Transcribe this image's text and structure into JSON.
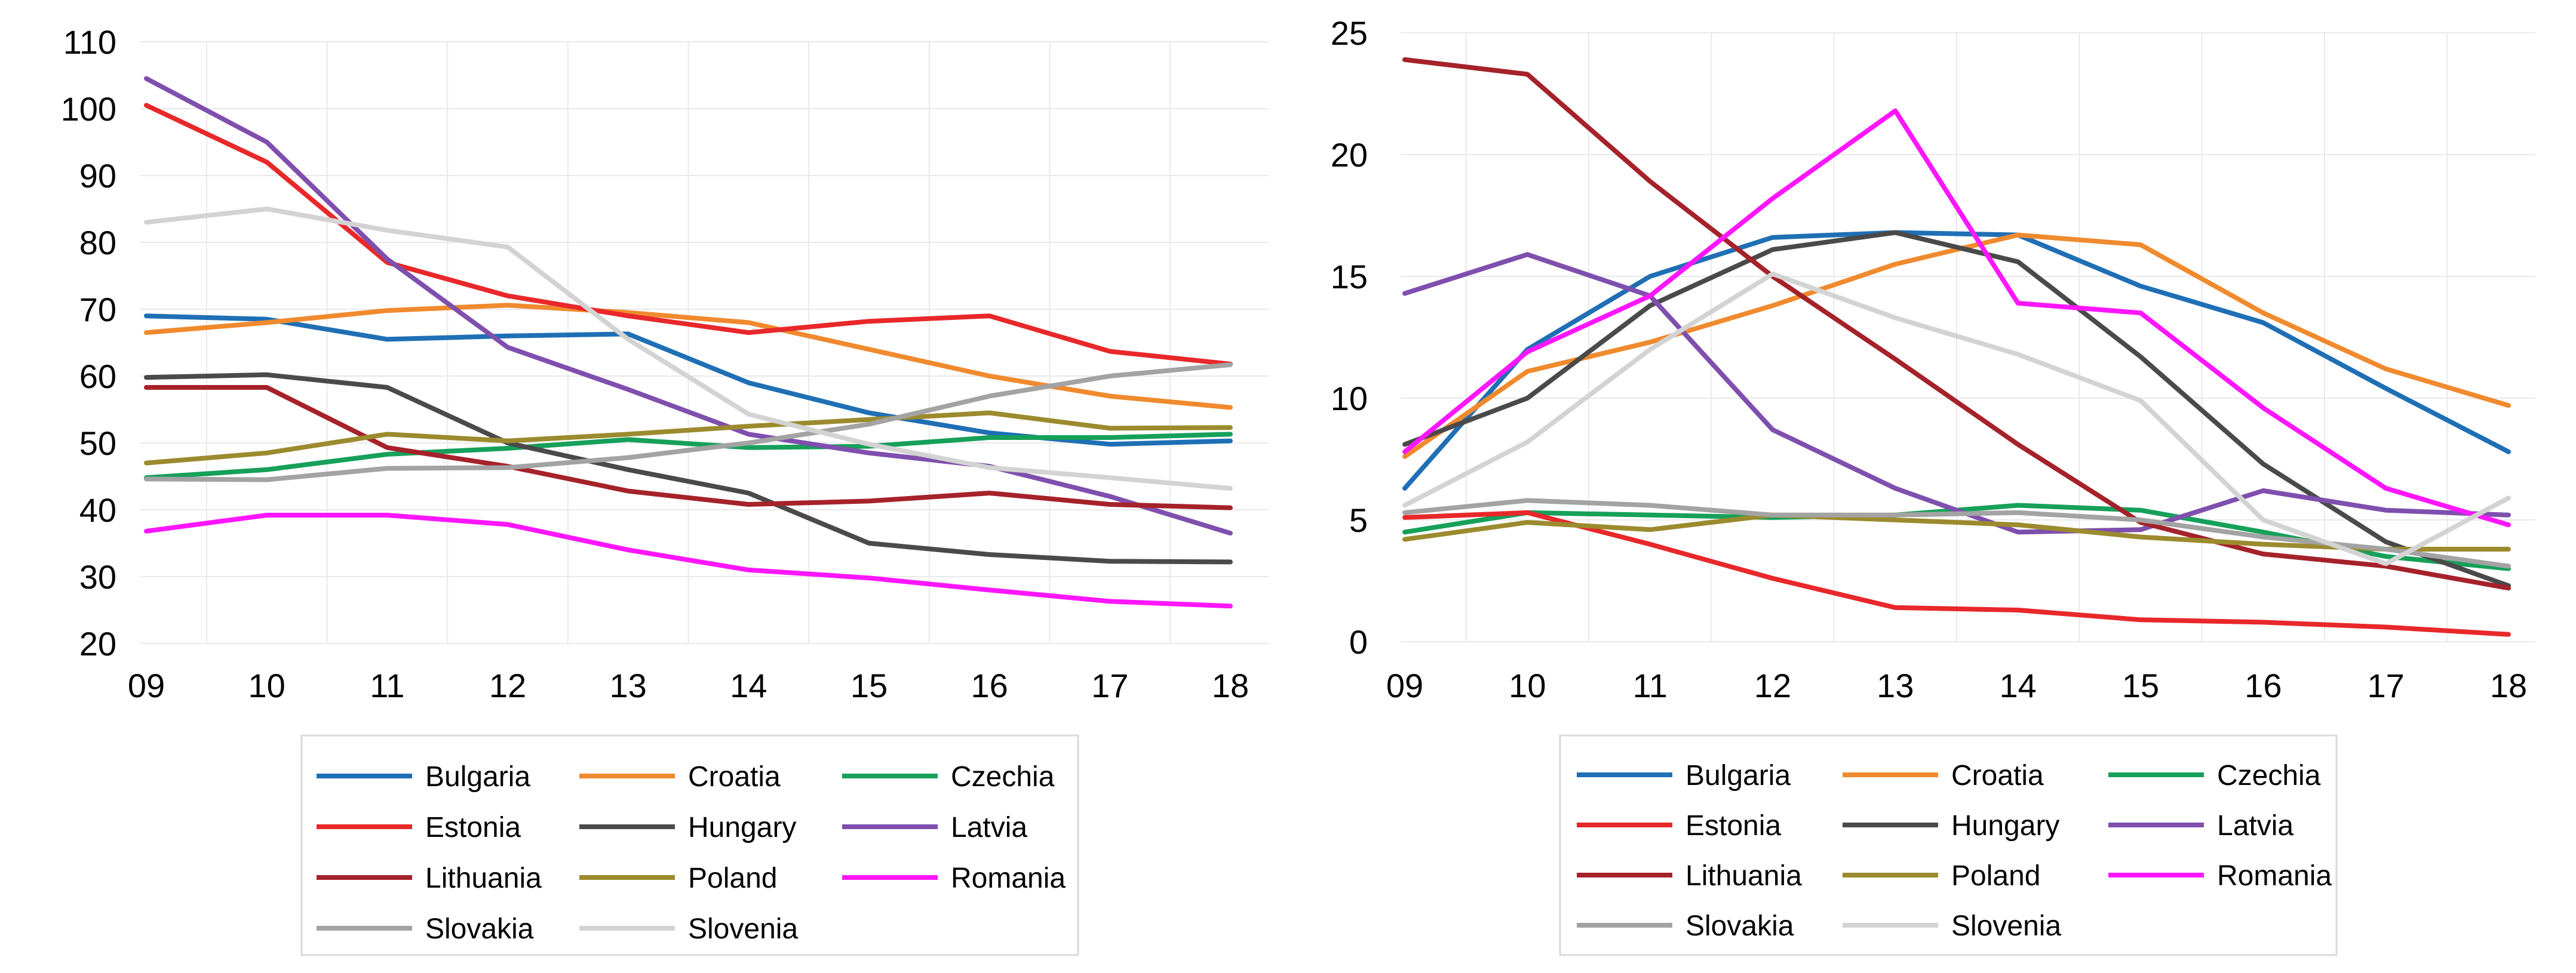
{
  "chart_data": [
    {
      "type": "line",
      "categories": [
        "09",
        "10",
        "11",
        "12",
        "13",
        "14",
        "15",
        "16",
        "17",
        "18"
      ],
      "ylim": [
        20,
        110
      ],
      "yticks": [
        20,
        30,
        40,
        50,
        60,
        70,
        80,
        90,
        100,
        110
      ],
      "legend_position": "bottom",
      "series": [
        {
          "name": "Bulgaria",
          "color": "#1f6fb5",
          "values": [
            69,
            68.5,
            65.5,
            66,
            66.3,
            59,
            54.5,
            51.5,
            49.8,
            50.3
          ]
        },
        {
          "name": "Croatia",
          "color": "#f08a2e",
          "values": [
            66.5,
            68,
            69.8,
            70.6,
            69.5,
            68,
            64,
            60,
            57,
            55.3
          ]
        },
        {
          "name": "Czechia",
          "color": "#16a05a",
          "values": [
            44.8,
            46,
            48.3,
            49.2,
            50.5,
            49.3,
            49.5,
            50.8,
            50.8,
            51.3
          ]
        },
        {
          "name": "Estonia",
          "color": "#e8282a",
          "values": [
            100.5,
            92,
            77,
            72,
            69,
            66.5,
            68.2,
            69,
            63.7,
            61.8
          ]
        },
        {
          "name": "Hungary",
          "color": "#4a4a4a",
          "values": [
            59.8,
            60.2,
            58.3,
            50,
            46,
            42.5,
            35,
            33.3,
            32.3,
            32.2
          ]
        },
        {
          "name": "Latvia",
          "color": "#7f4fae",
          "values": [
            104.5,
            95,
            77.5,
            64.3,
            58,
            51.3,
            48.5,
            46.5,
            42,
            36.5
          ]
        },
        {
          "name": "Lithuania",
          "color": "#a5222a",
          "values": [
            58.3,
            58.3,
            49.3,
            46.5,
            42.8,
            40.8,
            41.3,
            42.5,
            40.8,
            40.3
          ]
        },
        {
          "name": "Poland",
          "color": "#9b8b2e",
          "values": [
            47,
            48.5,
            51.3,
            50.3,
            51.3,
            52.5,
            53.5,
            54.5,
            52.2,
            52.3
          ]
        },
        {
          "name": "Romania",
          "color": "#ff16ff",
          "values": [
            36.8,
            39.2,
            39.2,
            37.8,
            34,
            31,
            29.8,
            28,
            26.3,
            25.6
          ]
        },
        {
          "name": "Slovakia",
          "color": "#a3a3a3",
          "values": [
            44.6,
            44.5,
            46.2,
            46.3,
            47.8,
            50,
            52.8,
            57,
            60,
            61.7
          ]
        },
        {
          "name": "Slovenia",
          "color": "#d3d3d3",
          "values": [
            83,
            85,
            81.8,
            79.3,
            65.5,
            54.3,
            49.8,
            46.3,
            44.8,
            43.2
          ]
        }
      ]
    },
    {
      "type": "line",
      "categories": [
        "09",
        "10",
        "11",
        "12",
        "13",
        "14",
        "15",
        "16",
        "17",
        "18"
      ],
      "ylim": [
        0,
        25
      ],
      "yticks": [
        0,
        5,
        10,
        15,
        20,
        25
      ],
      "legend_position": "bottom",
      "series": [
        {
          "name": "Bulgaria",
          "color": "#1f6fb5",
          "values": [
            6.3,
            12,
            15,
            16.6,
            16.8,
            16.7,
            14.6,
            13.1,
            10.4,
            7.8
          ]
        },
        {
          "name": "Croatia",
          "color": "#f08a2e",
          "values": [
            7.6,
            11.1,
            12.3,
            13.8,
            15.5,
            16.7,
            16.3,
            13.5,
            11.2,
            9.7
          ]
        },
        {
          "name": "Czechia",
          "color": "#16a05a",
          "values": [
            4.5,
            5.3,
            5.2,
            5.1,
            5.2,
            5.6,
            5.4,
            4.5,
            3.5,
            3
          ]
        },
        {
          "name": "Estonia",
          "color": "#e8282a",
          "values": [
            5.1,
            5.3,
            4,
            2.6,
            1.4,
            1.3,
            0.9,
            0.8,
            0.6,
            0.3
          ]
        },
        {
          "name": "Hungary",
          "color": "#4a4a4a",
          "values": [
            8.1,
            10,
            13.8,
            16.1,
            16.8,
            15.6,
            11.7,
            7.3,
            4.1,
            2.3
          ]
        },
        {
          "name": "Latvia",
          "color": "#7f4fae",
          "values": [
            14.3,
            15.9,
            14.2,
            8.7,
            6.3,
            4.5,
            4.6,
            6.2,
            5.4,
            5.2
          ]
        },
        {
          "name": "Lithuania",
          "color": "#a5222a",
          "values": [
            23.9,
            23.3,
            18.9,
            15,
            11.6,
            8.1,
            4.9,
            3.6,
            3.1,
            2.2
          ]
        },
        {
          "name": "Poland",
          "color": "#9b8b2e",
          "values": [
            4.2,
            4.9,
            4.6,
            5.2,
            5,
            4.8,
            4.3,
            4,
            3.8,
            3.8
          ]
        },
        {
          "name": "Romania",
          "color": "#ff16ff",
          "values": [
            7.8,
            11.9,
            14.2,
            18.2,
            21.8,
            13.9,
            13.5,
            9.6,
            6.3,
            4.8
          ]
        },
        {
          "name": "Slovakia",
          "color": "#a3a3a3",
          "values": [
            5.3,
            5.8,
            5.6,
            5.2,
            5.2,
            5.3,
            5,
            4.3,
            3.8,
            3.1
          ]
        },
        {
          "name": "Slovenia",
          "color": "#d3d3d3",
          "values": [
            5.6,
            8.2,
            12,
            15.1,
            13.3,
            11.8,
            9.9,
            5,
            3.2,
            5.9
          ]
        }
      ]
    }
  ]
}
